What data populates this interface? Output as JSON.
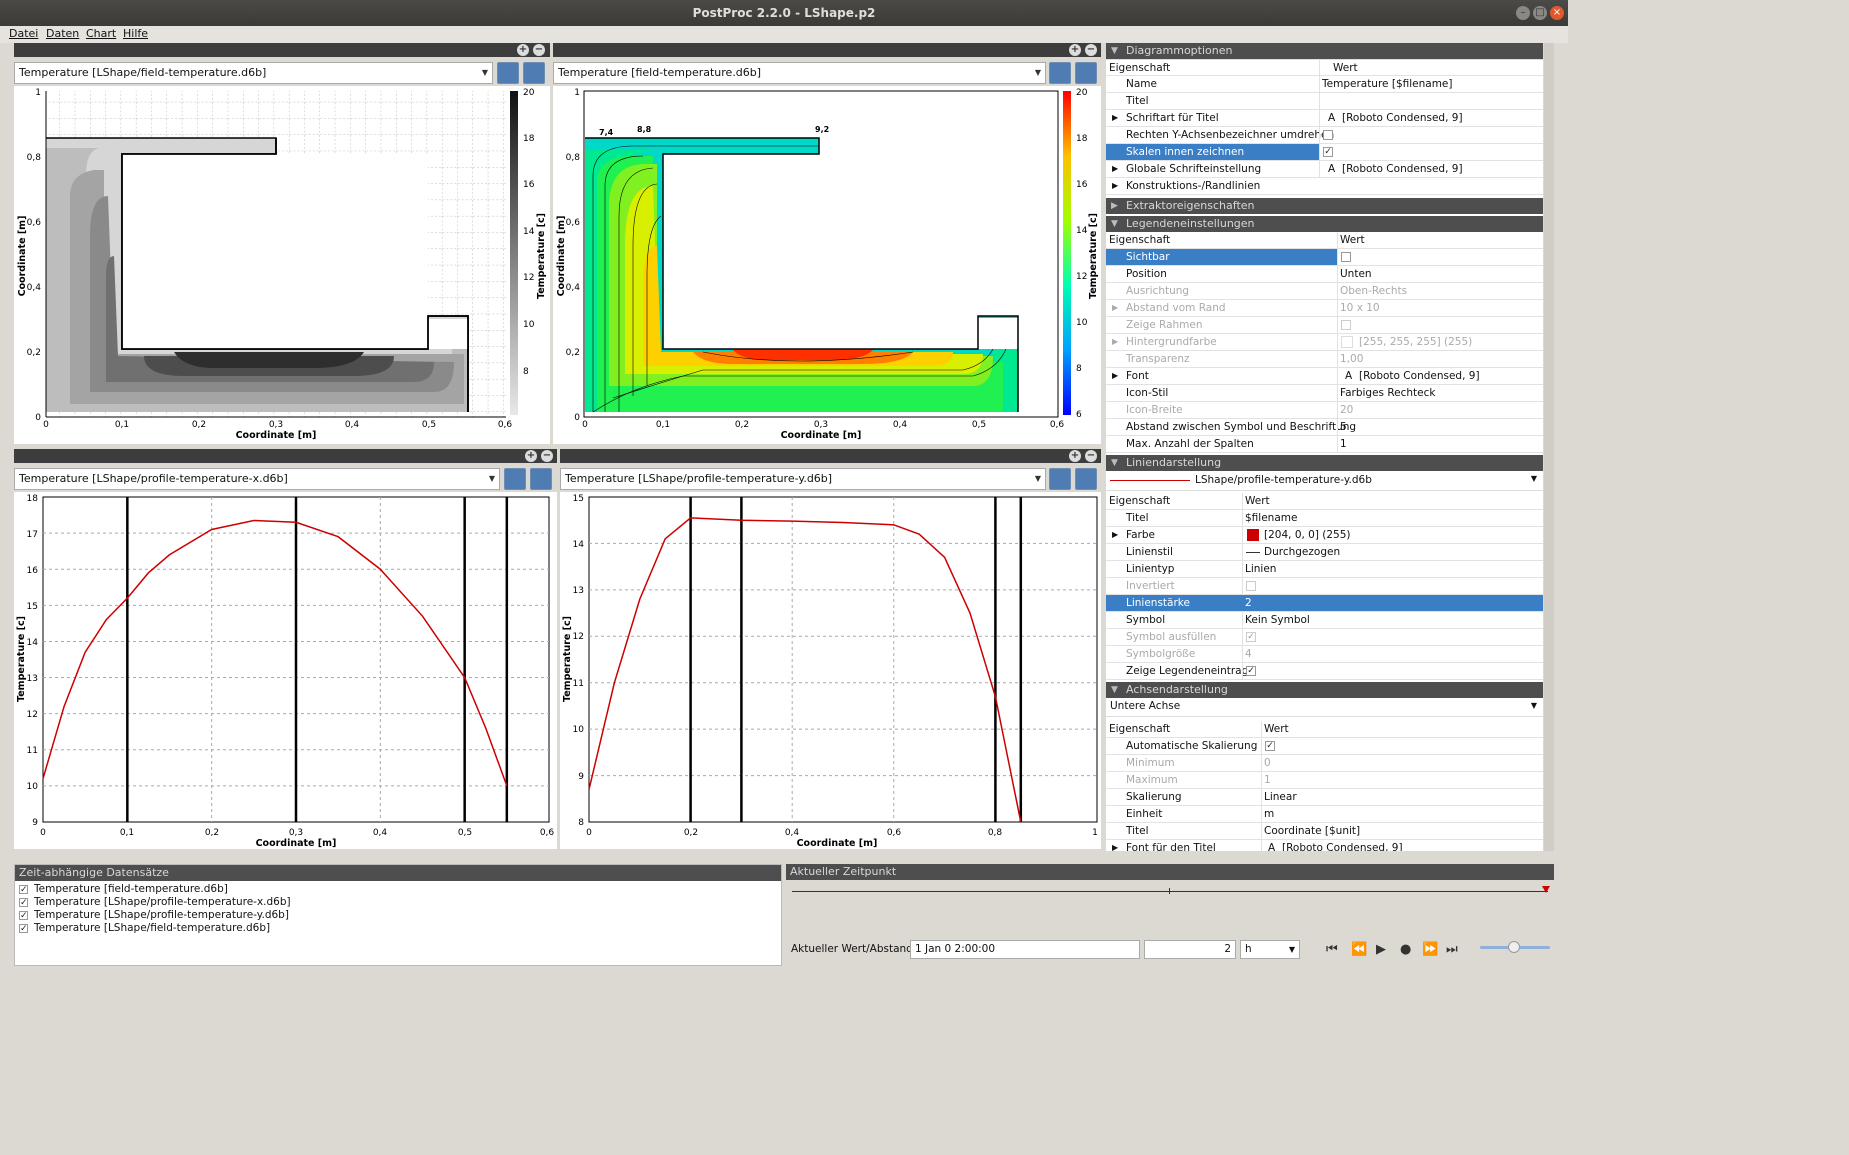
{
  "window": {
    "title": "PostProc 2.2.0 - LShape.p2"
  },
  "menu": [
    "Datei",
    "Daten",
    "Chart",
    "Hilfe"
  ],
  "charts": {
    "tl": {
      "dataset": "Temperature [LShape/field-temperature.d6b]"
    },
    "tr": {
      "dataset": "Temperature [field-temperature.d6b]"
    },
    "bl": {
      "dataset": "Temperature [LShape/profile-temperature-x.d6b]"
    },
    "br": {
      "dataset": "Temperature [LShape/profile-temperature-y.d6b]"
    }
  },
  "axes": {
    "coord": "Coordinate [m]",
    "temp": "Temperature [c]",
    "tl_x_ticks": [
      "0",
      "0,1",
      "0,2",
      "0,3",
      "0,4",
      "0,5",
      "0,6"
    ],
    "tl_y_ticks": [
      "0",
      "0,2",
      "0,4",
      "0,6",
      "0,8",
      "1"
    ],
    "tl_cb_ticks": [
      "8",
      "10",
      "12",
      "14",
      "16",
      "18",
      "20"
    ],
    "tr_cb_ticks": [
      "6",
      "8",
      "10",
      "12",
      "14",
      "16",
      "18",
      "20"
    ],
    "bl_y_ticks": [
      "9",
      "10",
      "11",
      "12",
      "13",
      "14",
      "15",
      "16",
      "17",
      "18"
    ],
    "br_x_ticks": [
      "0",
      "0,2",
      "0,4",
      "0,6",
      "0,8",
      "1"
    ],
    "br_y_ticks": [
      "8",
      "9",
      "10",
      "11",
      "12",
      "13",
      "14",
      "15"
    ],
    "contour_labels": [
      "7,4",
      "8,8",
      "9,2"
    ]
  },
  "chart_data": [
    {
      "type": "line",
      "title": "",
      "xlabel": "Coordinate [m]",
      "ylabel": "Temperature [c]",
      "xlim": [
        0,
        0.6
      ],
      "ylim": [
        9,
        18
      ],
      "vlines": [
        0.1,
        0.3,
        0.5,
        0.55
      ],
      "series": [
        {
          "color": "#cc0000",
          "x": [
            0,
            0.025,
            0.05,
            0.075,
            0.1,
            0.125,
            0.15,
            0.2,
            0.25,
            0.3,
            0.35,
            0.4,
            0.45,
            0.5,
            0.525,
            0.55
          ],
          "y": [
            10.2,
            12.2,
            13.7,
            14.6,
            15.2,
            15.9,
            16.4,
            17.1,
            17.35,
            17.3,
            16.9,
            16.0,
            14.7,
            13.0,
            11.6,
            10.0
          ]
        }
      ]
    },
    {
      "type": "line",
      "title": "",
      "xlabel": "Coordinate [m]",
      "ylabel": "Temperature [c]",
      "xlim": [
        0,
        1
      ],
      "ylim": [
        8,
        15
      ],
      "vlines": [
        0.2,
        0.3,
        0.8,
        0.85
      ],
      "series": [
        {
          "color": "#cc0000",
          "x": [
            0,
            0.05,
            0.1,
            0.15,
            0.2,
            0.3,
            0.4,
            0.5,
            0.6,
            0.65,
            0.7,
            0.75,
            0.8,
            0.85
          ],
          "y": [
            8.7,
            11.0,
            12.8,
            14.1,
            14.55,
            14.5,
            14.48,
            14.45,
            14.4,
            14.2,
            13.7,
            12.5,
            10.7,
            8.0
          ]
        }
      ]
    }
  ],
  "diagram": {
    "section": "Diagrammoptionen",
    "col_prop": "Eigenschaft",
    "col_val": "Wert",
    "rows": [
      {
        "k": "Name",
        "v": "Temperature [$filename]"
      },
      {
        "k": "Titel",
        "v": ""
      },
      {
        "k": "Schriftart für Titel",
        "v": "[Roboto Condensed, 9]"
      },
      {
        "k": "Rechten Y-Achsenbezeichner umdrehen",
        "v": ""
      },
      {
        "k": "Skalen innen zeichnen",
        "v": ""
      },
      {
        "k": "Globale Schrifteinstellung",
        "v": "[Roboto Condensed, 9]"
      },
      {
        "k": "Konstruktions-/Randlinien",
        "v": ""
      }
    ]
  },
  "extractor": {
    "section": "Extraktoreigenschaften"
  },
  "legend": {
    "section": "Legendeneinstellungen",
    "rows": [
      {
        "k": "Sichtbar",
        "v": ""
      },
      {
        "k": "Position",
        "v": "Unten"
      },
      {
        "k": "Ausrichtung",
        "v": "Oben-Rechts"
      },
      {
        "k": "Abstand vom Rand",
        "v": "10 x 10"
      },
      {
        "k": "Zeige Rahmen",
        "v": ""
      },
      {
        "k": "Hintergrundfarbe",
        "v": "[255, 255, 255] (255)"
      },
      {
        "k": "Transparenz",
        "v": "1,00"
      },
      {
        "k": "Font",
        "v": "[Roboto Condensed, 9]"
      },
      {
        "k": "Icon-Stil",
        "v": "Farbiges Rechteck"
      },
      {
        "k": "Icon-Breite",
        "v": "20"
      },
      {
        "k": "Abstand zwischen Symbol und Beschriftung",
        "v": "5"
      },
      {
        "k": "Max. Anzahl der Spalten",
        "v": "1"
      }
    ]
  },
  "lines": {
    "section": "Liniendarstellung",
    "selected": "LShape/profile-temperature-y.d6b",
    "rows": [
      {
        "k": "Titel",
        "v": "$filename"
      },
      {
        "k": "Farbe",
        "v": "[204, 0, 0] (255)"
      },
      {
        "k": "Linienstil",
        "v": "Durchgezogen"
      },
      {
        "k": "Linientyp",
        "v": "Linien"
      },
      {
        "k": "Invertiert",
        "v": ""
      },
      {
        "k": "Linienstärke",
        "v": "2"
      },
      {
        "k": "Symbol",
        "v": "Kein Symbol"
      },
      {
        "k": "Symbol ausfüllen",
        "v": ""
      },
      {
        "k": "Symbolgröße",
        "v": "4"
      },
      {
        "k": "Zeige Legendeneintrag",
        "v": ""
      }
    ]
  },
  "axis_section": {
    "section": "Achsendarstellung",
    "selected": "Untere Achse",
    "rows": [
      {
        "k": "Automatische Skalierung",
        "v": ""
      },
      {
        "k": "Minimum",
        "v": "0"
      },
      {
        "k": "Maximum",
        "v": "1"
      },
      {
        "k": "Skalierung",
        "v": "Linear"
      },
      {
        "k": "Einheit",
        "v": "m"
      },
      {
        "k": "Titel",
        "v": "Coordinate [$unit]"
      },
      {
        "k": "Font für den Titel",
        "v": "[Roboto Condensed, 9]"
      }
    ]
  },
  "datasets": {
    "header": "Zeit-abhängige Datensätze",
    "items": [
      "Temperature [field-temperature.d6b]",
      "Temperature [LShape/profile-temperature-x.d6b]",
      "Temperature [LShape/profile-temperature-y.d6b]",
      "Temperature [LShape/field-temperature.d6b]"
    ]
  },
  "time": {
    "header": "Aktueller Zeitpunkt",
    "label": "Aktueller Wert/Abstand:",
    "value": "1 Jan 0   2:00:00",
    "step": "2",
    "unit": "h"
  },
  "colors": {
    "accent": "#3a7fc6",
    "line": "#cc0000"
  }
}
